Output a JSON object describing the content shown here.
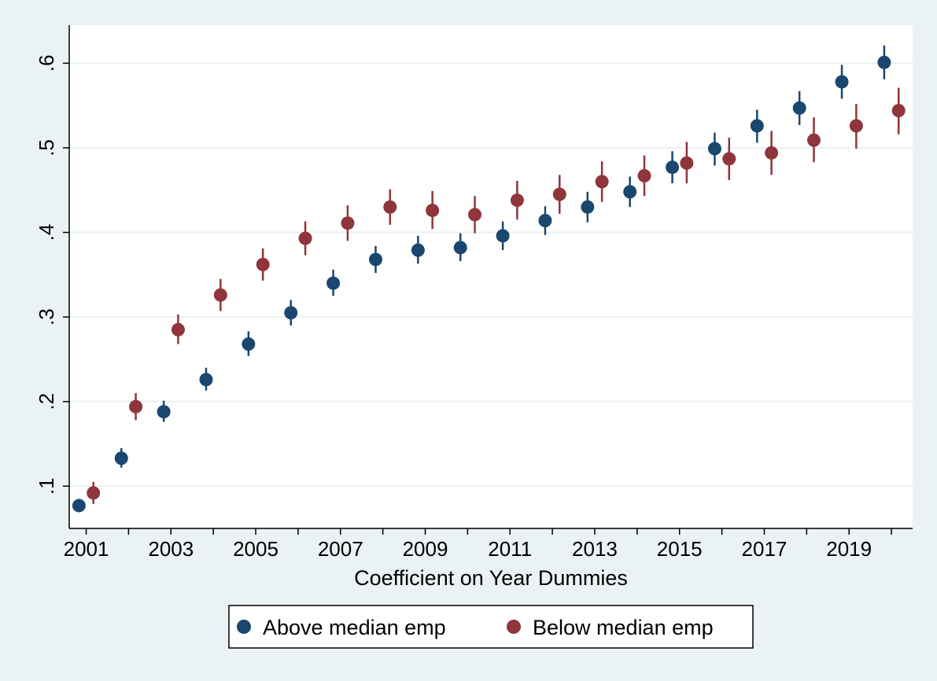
{
  "chart_data": {
    "type": "scatter",
    "title": "",
    "xlabel": "Coefficient on Year Dummies",
    "ylabel": "",
    "xlim": [
      2000.6,
      2020.5
    ],
    "ylim": [
      0.05,
      0.645
    ],
    "x_ticks": [
      2001,
      2002,
      2003,
      2004,
      2005,
      2006,
      2007,
      2008,
      2009,
      2010,
      2011,
      2012,
      2013,
      2014,
      2015,
      2016,
      2017,
      2018,
      2019,
      2020
    ],
    "x_tick_labels": [
      "2001",
      "",
      "2003",
      "",
      "2005",
      "",
      "2007",
      "",
      "2009",
      "",
      "2011",
      "",
      "2013",
      "",
      "2015",
      "",
      "2017",
      "",
      "2019",
      ""
    ],
    "y_ticks": [
      0.1,
      0.2,
      0.3,
      0.4,
      0.5,
      0.6
    ],
    "y_tick_labels": [
      ".1",
      ".2",
      ".3",
      ".4",
      ".5",
      ".6"
    ],
    "grid": "horizontal",
    "legend_position": "bottom",
    "series": [
      {
        "name": "Above median emp",
        "color": "#1a476f",
        "x": [
          2001,
          2002,
          2003,
          2004,
          2005,
          2006,
          2007,
          2008,
          2009,
          2010,
          2011,
          2012,
          2013,
          2014,
          2015,
          2016,
          2017,
          2018,
          2019,
          2020
        ],
        "values": [
          0.077,
          0.133,
          0.188,
          0.226,
          0.268,
          0.305,
          0.34,
          0.368,
          0.379,
          0.382,
          0.396,
          0.414,
          0.43,
          0.448,
          0.477,
          0.499,
          0.526,
          0.547,
          0.578,
          0.601
        ],
        "ci_low": [
          0.07,
          0.122,
          0.176,
          0.213,
          0.254,
          0.29,
          0.325,
          0.352,
          0.363,
          0.366,
          0.379,
          0.397,
          0.412,
          0.43,
          0.458,
          0.479,
          0.506,
          0.527,
          0.558,
          0.581
        ],
        "ci_high": [
          0.085,
          0.145,
          0.201,
          0.24,
          0.283,
          0.32,
          0.356,
          0.384,
          0.396,
          0.399,
          0.413,
          0.431,
          0.448,
          0.466,
          0.496,
          0.518,
          0.545,
          0.567,
          0.598,
          0.621
        ]
      },
      {
        "name": "Below median emp",
        "color": "#90353b",
        "x": [
          2001,
          2002,
          2003,
          2004,
          2005,
          2006,
          2007,
          2008,
          2009,
          2010,
          2011,
          2012,
          2013,
          2014,
          2015,
          2016,
          2017,
          2018,
          2019,
          2020
        ],
        "values": [
          0.092,
          0.194,
          0.285,
          0.326,
          0.362,
          0.393,
          0.411,
          0.43,
          0.426,
          0.421,
          0.438,
          0.445,
          0.46,
          0.467,
          0.482,
          0.487,
          0.494,
          0.509,
          0.526,
          0.544
        ],
        "ci_low": [
          0.079,
          0.178,
          0.268,
          0.307,
          0.343,
          0.373,
          0.39,
          0.409,
          0.404,
          0.399,
          0.415,
          0.422,
          0.436,
          0.443,
          0.458,
          0.462,
          0.468,
          0.483,
          0.499,
          0.516
        ],
        "ci_high": [
          0.105,
          0.21,
          0.303,
          0.345,
          0.381,
          0.413,
          0.432,
          0.451,
          0.449,
          0.443,
          0.461,
          0.468,
          0.484,
          0.491,
          0.507,
          0.512,
          0.52,
          0.536,
          0.552,
          0.571
        ]
      }
    ]
  }
}
